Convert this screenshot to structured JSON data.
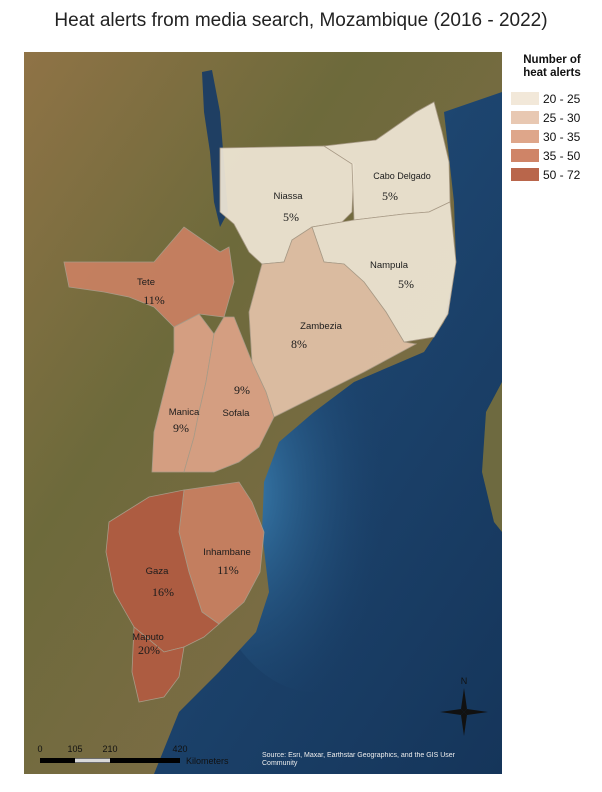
{
  "title": "Heat alerts from media search, Mozambique (2016 - 2022)",
  "legend": {
    "title_line1": "Number of",
    "title_line2": "heat alerts",
    "items": [
      {
        "label": "20 - 25",
        "color": "#f2e8d9"
      },
      {
        "label": "25 - 30",
        "color": "#e8c8b2"
      },
      {
        "label": "30 - 35",
        "color": "#dea68a"
      },
      {
        "label": "35 - 50",
        "color": "#cf8467"
      },
      {
        "label": "50 - 72",
        "color": "#b9664b"
      }
    ]
  },
  "provinces": [
    {
      "name": "Niassa",
      "pct": "5%",
      "color": "#efe6d5"
    },
    {
      "name": "Cabo Delgado",
      "pct": "5%",
      "color": "#efe6d5"
    },
    {
      "name": "Nampula",
      "pct": "5%",
      "color": "#efe6d5"
    },
    {
      "name": "Tete",
      "pct": "11%",
      "color": "#c98062"
    },
    {
      "name": "Zambezia",
      "pct": "8%",
      "color": "#e2c2a8"
    },
    {
      "name": "Manica",
      "pct": "9%",
      "color": "#dba286"
    },
    {
      "name": "Sofala",
      "pct": "9%",
      "color": "#dba286"
    },
    {
      "name": "Inhambane",
      "pct": "11%",
      "color": "#c98062"
    },
    {
      "name": "Gaza",
      "pct": "16%",
      "color": "#b15b42"
    },
    {
      "name": "Maputo",
      "pct": "20%",
      "color": "#b15b42"
    }
  ],
  "scale": {
    "ticks": [
      "0",
      "105",
      "210",
      "420"
    ],
    "unit": "Kilometers"
  },
  "attribution": "Source: Esri, Maxar, Earthstar Geographics, and the GIS User Community"
}
